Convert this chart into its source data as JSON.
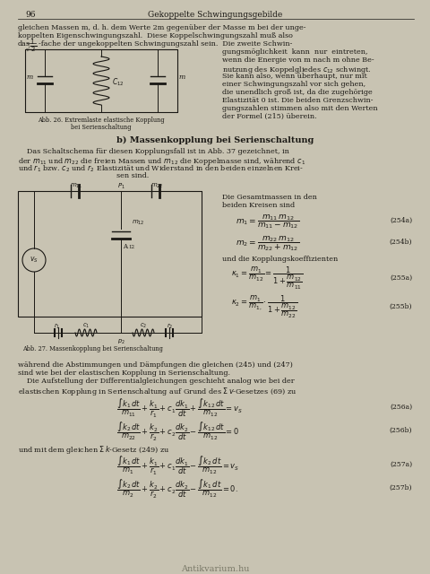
{
  "page_number": "96",
  "header_title": "Gekoppelte Schwingungsgebilde",
  "page_bg": "#c8c3b2",
  "text_color": "#1a1814",
  "watermark": "Antikvarium.hu"
}
